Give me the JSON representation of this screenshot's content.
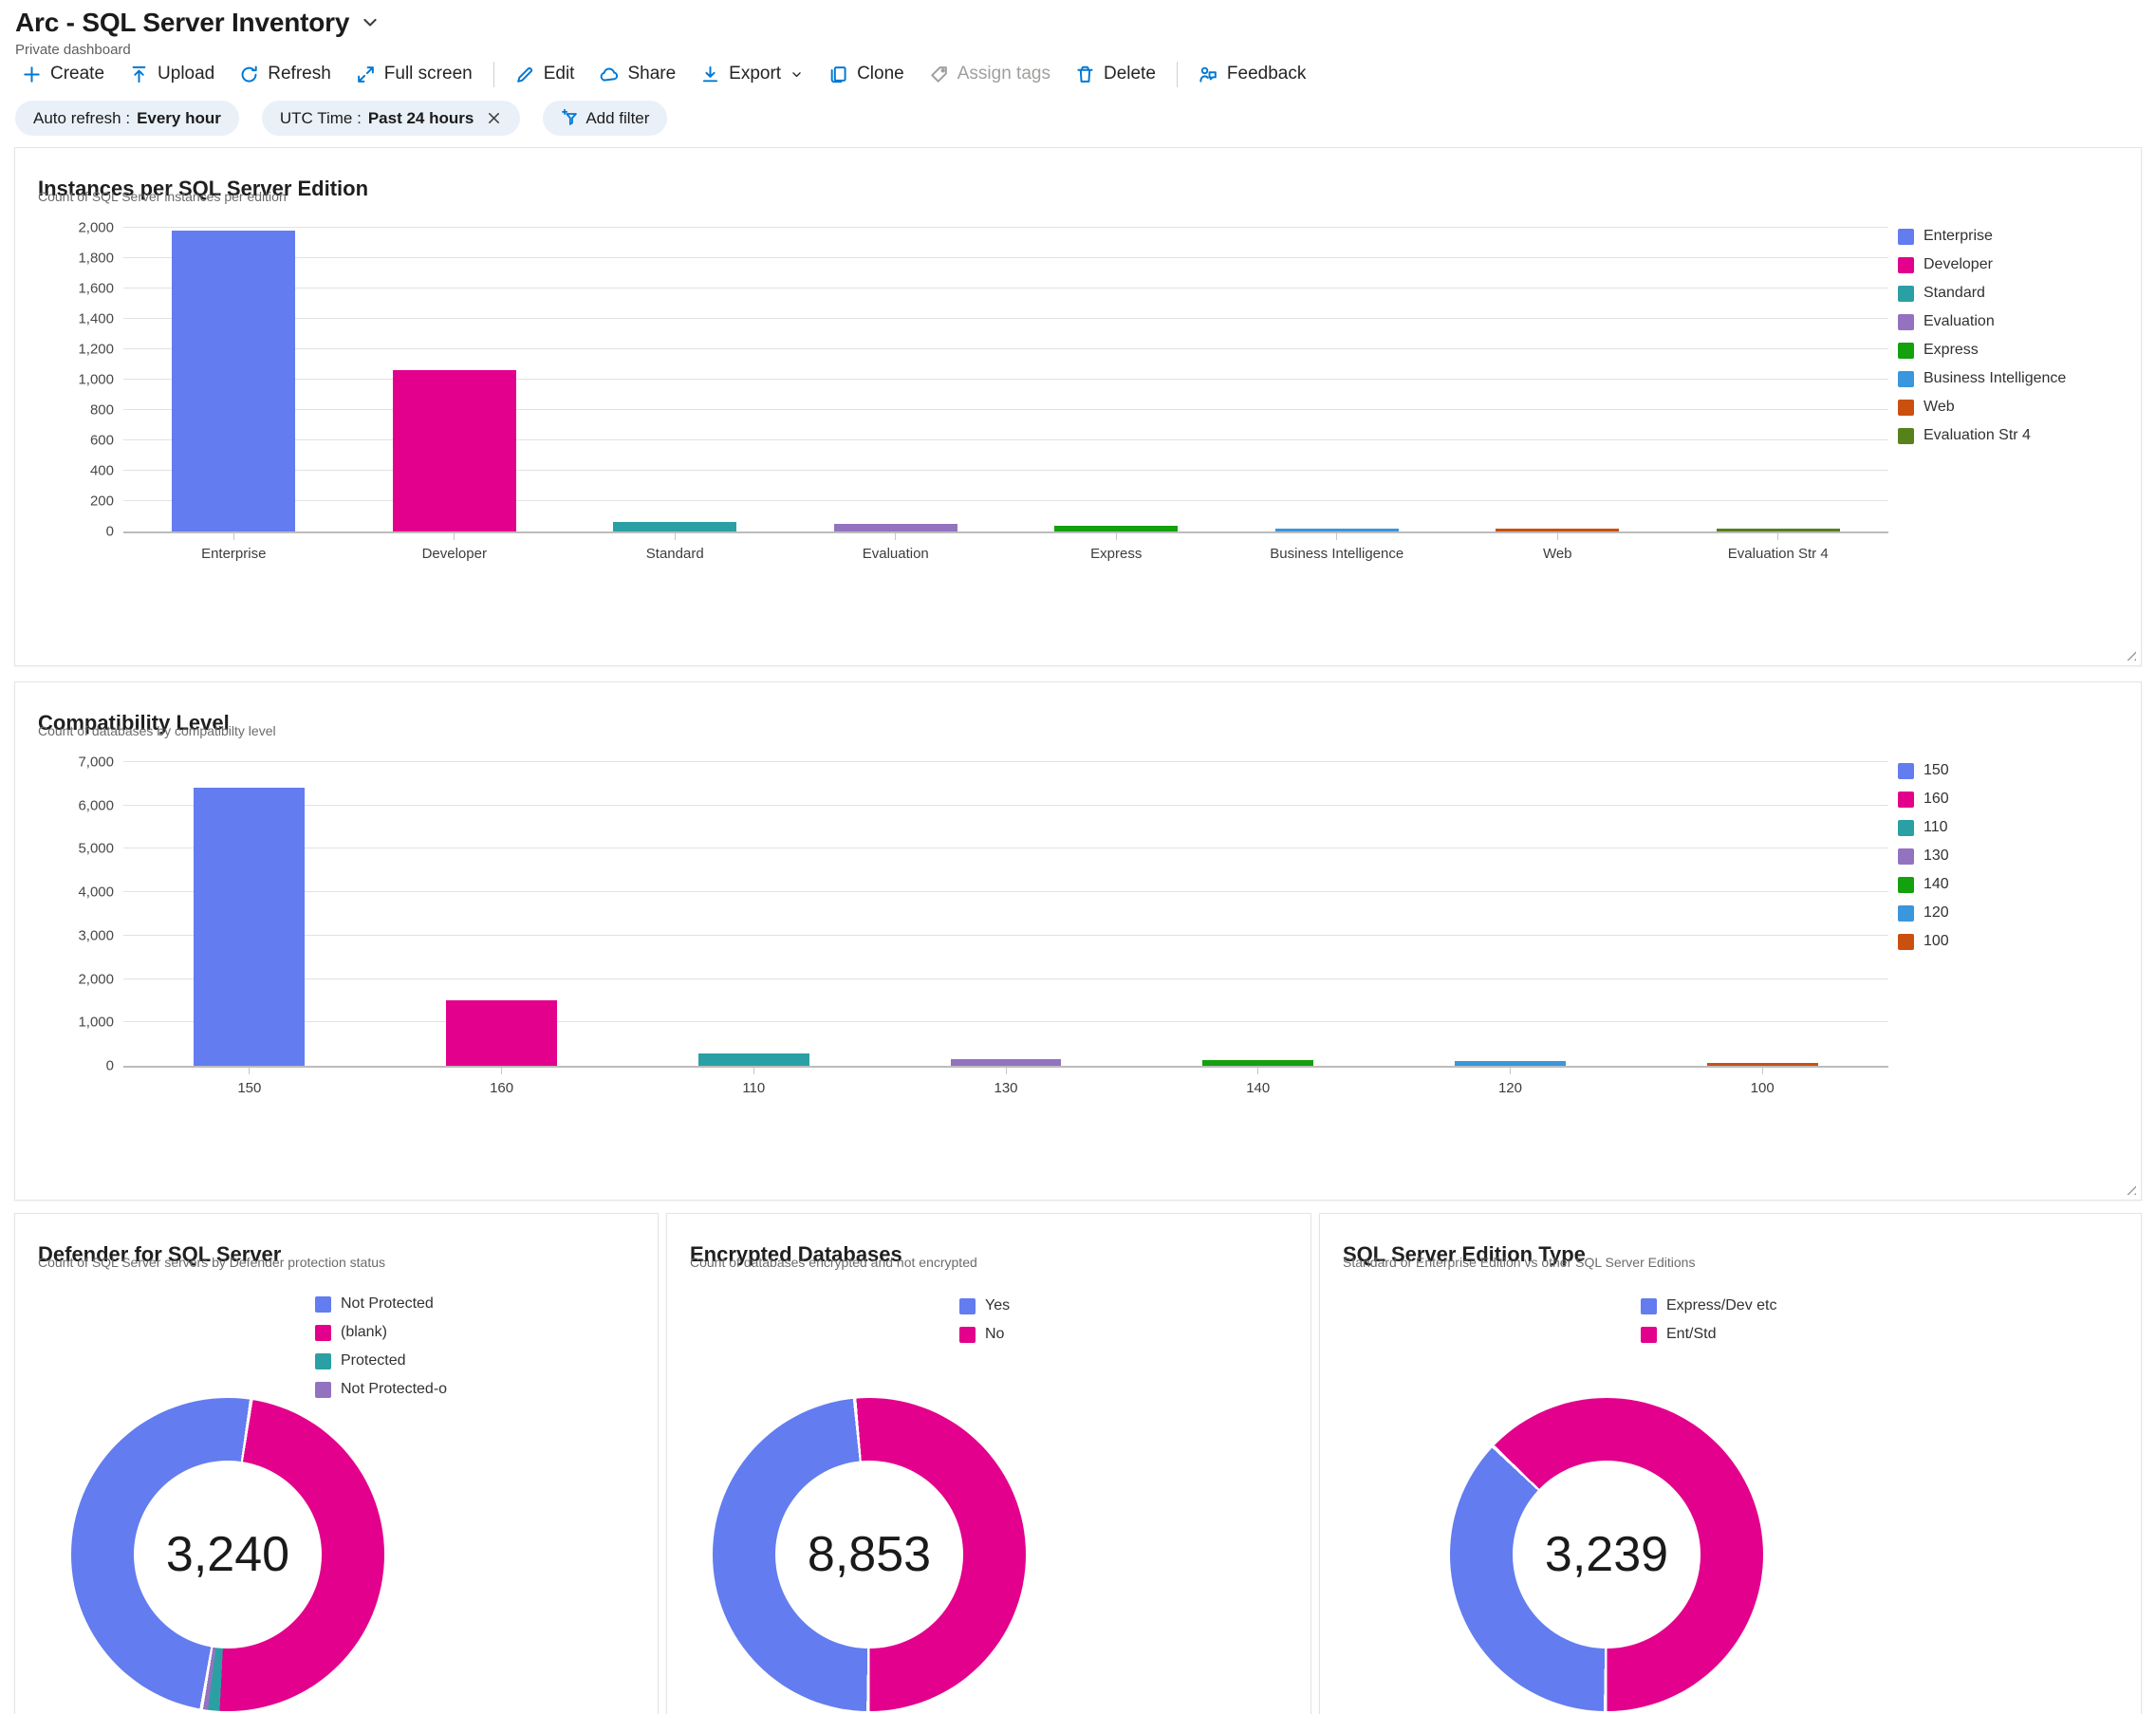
{
  "header": {
    "title": "Arc - SQL Server Inventory",
    "subtitle": "Private dashboard"
  },
  "toolbar": {
    "items": [
      {
        "label": "Create",
        "icon": "plus-icon"
      },
      {
        "label": "Upload",
        "icon": "upload-icon"
      },
      {
        "label": "Refresh",
        "icon": "refresh-icon"
      },
      {
        "label": "Full screen",
        "icon": "fullscreen-icon"
      },
      {
        "divider": true
      },
      {
        "label": "Edit",
        "icon": "edit-icon"
      },
      {
        "label": "Share",
        "icon": "share-icon"
      },
      {
        "label": "Export",
        "icon": "export-icon",
        "chevron": true
      },
      {
        "label": "Clone",
        "icon": "clone-icon"
      },
      {
        "label": "Assign tags",
        "icon": "tag-icon",
        "disabled": true
      },
      {
        "label": "Delete",
        "icon": "delete-icon"
      },
      {
        "divider": true
      },
      {
        "label": "Feedback",
        "icon": "feedback-icon"
      }
    ]
  },
  "filters": {
    "pills": [
      {
        "label": "Auto refresh :",
        "value": "Every hour",
        "closable": false
      },
      {
        "label": "UTC Time :",
        "value": "Past 24 hours",
        "closable": true
      }
    ],
    "add_filter_label": "Add filter"
  },
  "chart_data": [
    {
      "id": "editions",
      "type": "bar",
      "title": "Instances per SQL Server Edition",
      "subtitle": "Count of SQL Server instances per edition",
      "categories": [
        "Enterprise",
        "Developer",
        "Standard",
        "Evaluation",
        "Express",
        "Business Intelligence",
        "Web",
        "Evaluation Str 4"
      ],
      "values": [
        1980,
        1060,
        63,
        48,
        38,
        8,
        6,
        5
      ],
      "colors": [
        "#637CEF",
        "#E3008C",
        "#2AA0A4",
        "#9373C0",
        "#13A10E",
        "#3A96DD",
        "#CA5010",
        "#57811B"
      ],
      "ylim": [
        0,
        2000
      ],
      "ytick": 200,
      "grid": true,
      "legend_position": "right"
    },
    {
      "id": "compatibility",
      "type": "bar",
      "title": "Compatibility Level",
      "subtitle": "Count of databases by compatibilty level",
      "categories": [
        "150",
        "160",
        "110",
        "130",
        "140",
        "120",
        "100"
      ],
      "values": [
        6400,
        1500,
        280,
        160,
        130,
        110,
        25
      ],
      "colors": [
        "#637CEF",
        "#E3008C",
        "#2AA0A4",
        "#9373C0",
        "#13A10E",
        "#3A96DD",
        "#CA5010"
      ],
      "ylim": [
        0,
        7000
      ],
      "ytick": 1000,
      "grid": true,
      "legend_position": "right"
    },
    {
      "id": "defender",
      "type": "donut",
      "title": "Defender for SQL Server",
      "subtitle": "Count of SQL Server servers by Defender protection status",
      "total": "3,240",
      "legend": [
        {
          "label": "Not Protected",
          "color": "#637CEF"
        },
        {
          "label": "(blank)",
          "color": "#E3008C"
        },
        {
          "label": "Protected",
          "color": "#2AA0A4"
        },
        {
          "label": "Not Protected-o",
          "color": "#9373C0"
        }
      ],
      "start_deg": 8,
      "slices": [
        {
          "label": "(blank)",
          "pct": 48.6,
          "color": "#E3008C"
        },
        {
          "label": "Protected",
          "pct": 1.2,
          "color": "#2AA0A4"
        },
        {
          "label": "Not Protected-o",
          "pct": 0.5,
          "color": "#9373C0"
        },
        {
          "label": "Not Protected",
          "pct": 49.7,
          "color": "#637CEF"
        }
      ]
    },
    {
      "id": "encrypted",
      "type": "donut",
      "title": "Encrypted Databases",
      "subtitle": "Count of databases encrypted and not encrypted",
      "total": "8,853",
      "legend": [
        {
          "label": "Yes",
          "color": "#637CEF"
        },
        {
          "label": "No",
          "color": "#E3008C"
        }
      ],
      "start_deg": -6,
      "slices": [
        {
          "label": "No",
          "pct": 51.6,
          "color": "#E3008C"
        },
        {
          "label": "Yes",
          "pct": 48.4,
          "color": "#637CEF"
        }
      ]
    },
    {
      "id": "edition_type",
      "type": "donut",
      "title": "SQL Server Edition Type",
      "subtitle": "Standard or Enterprise Edition vs other SQL Server Editions",
      "total": "3,239",
      "legend": [
        {
          "label": "Express/Dev etc",
          "color": "#637CEF"
        },
        {
          "label": "Ent/Std",
          "color": "#E3008C"
        }
      ],
      "start_deg": -47,
      "slices": [
        {
          "label": "Ent/Std",
          "pct": 63,
          "color": "#E3008C"
        },
        {
          "label": "Express/Dev etc",
          "pct": 37,
          "color": "#637CEF"
        }
      ]
    }
  ]
}
